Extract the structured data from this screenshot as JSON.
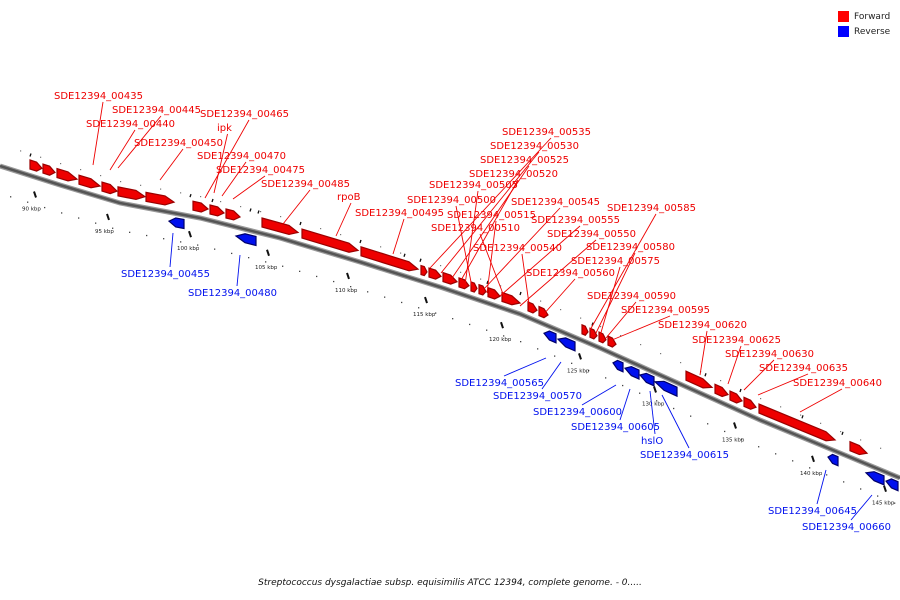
{
  "legend": {
    "forward_label": "Forward",
    "reverse_label": "Reverse",
    "forward_color": "#ff0000",
    "reverse_color": "#0000ff"
  },
  "caption": "Streptococcus dysgalactiae subsp. equisimilis ATCC 12394, complete genome. - 0.....",
  "scale": {
    "ticks": [
      "90 kbp",
      "95 kbp",
      "100 kbp",
      "105 kbp",
      "110 kbp",
      "115 kbp",
      "120 kbp",
      "125 kbp",
      "130 kbp",
      "135 kbp",
      "140 kbp",
      "145 kbp"
    ]
  },
  "colors": {
    "forward_fill": "#ee0000",
    "forward_dark": "#9a0000",
    "reverse_fill": "#0010ee",
    "reverse_dark": "#00006a",
    "backbone": "#555555"
  },
  "genes": {
    "forward_labels": [
      "SDE12394_00435",
      "SDE12394_00445",
      "SDE12394_00440",
      "SDE12394_00450",
      "SDE12394_00465",
      "ipk",
      "SDE12394_00470",
      "SDE12394_00475",
      "SDE12394_00485",
      "rpoB",
      "SDE12394_00495",
      "SDE12394_00535",
      "SDE12394_00530",
      "SDE12394_00525",
      "SDE12394_00520",
      "SDE12394_00505",
      "SDE12394_00500",
      "SDE12394_00545",
      "SDE12394_00515",
      "SDE12394_00555",
      "SDE12394_00510",
      "SDE12394_00550",
      "SDE12394_00540",
      "SDE12394_00560",
      "SDE12394_00585",
      "SDE12394_00580",
      "SDE12394_00575",
      "SDE12394_00590",
      "SDE12394_00595",
      "SDE12394_00620",
      "SDE12394_00625",
      "SDE12394_00630",
      "SDE12394_00635",
      "SDE12394_00640"
    ],
    "reverse_labels": [
      "SDE12394_00455",
      "SDE12394_00480",
      "SDE12394_00565",
      "SDE12394_00570",
      "SDE12394_00600",
      "SDE12394_00605",
      "hslO",
      "SDE12394_00615",
      "SDE12394_00645",
      "SDE12394_00660"
    ]
  }
}
